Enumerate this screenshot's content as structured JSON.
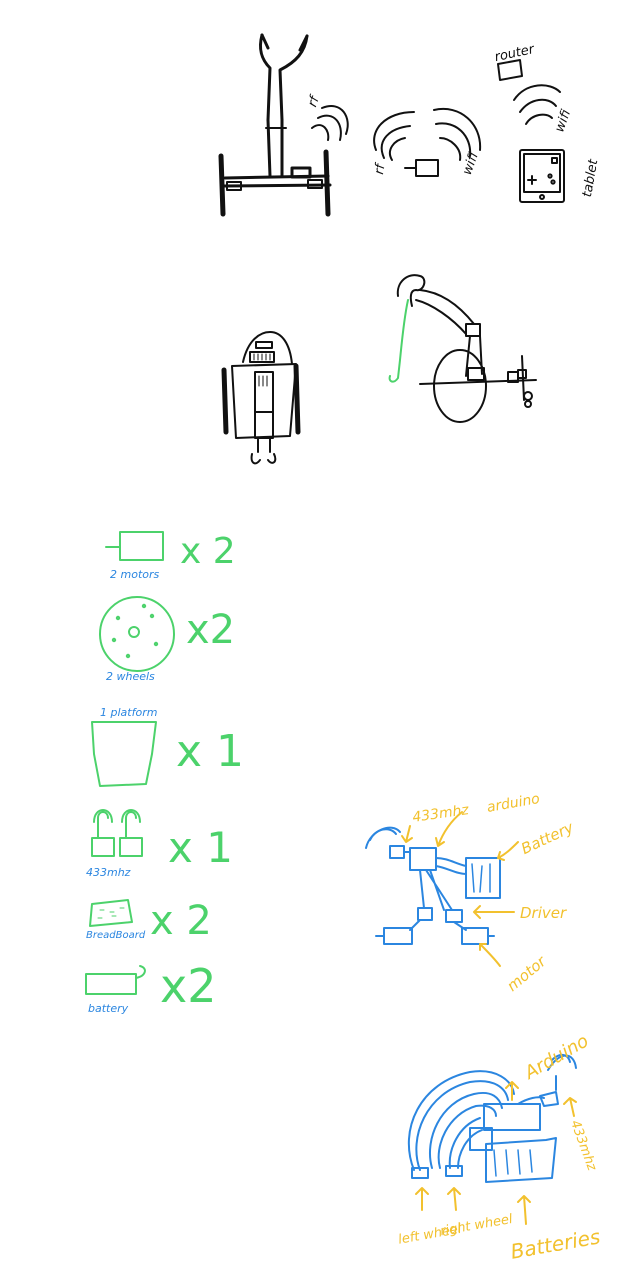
{
  "sketch1": {
    "rf_left": "rf",
    "rf_right": "rf",
    "wifi_mid": "wifi",
    "wifi_right": "wifi",
    "router": "router",
    "tablet": "tablet"
  },
  "parts": [
    {
      "label": "2 motors",
      "qty": "x 2"
    },
    {
      "label": "2 wheels",
      "qty": "x2"
    },
    {
      "label": "1 platform",
      "qty": "x 1"
    },
    {
      "label": "433mhz",
      "qty": "x 1"
    },
    {
      "label": "BreadBoard",
      "qty": "x 2"
    },
    {
      "label": "battery",
      "qty": "x2"
    }
  ],
  "wiring1": {
    "radio": "433mhz",
    "arduino": "arduino",
    "battery": "Battery",
    "driver": "Driver",
    "motor": "motor"
  },
  "wiring2": {
    "arduino": "Arduino",
    "radio": "433mhz",
    "left_wheel": "left wheel",
    "right_wheel": "right wheel",
    "batteries": "Batteries"
  },
  "colors": {
    "ink": "#111111",
    "green": "#4cd26b",
    "blue": "#2b86e0",
    "yellow": "#f2c12e"
  }
}
